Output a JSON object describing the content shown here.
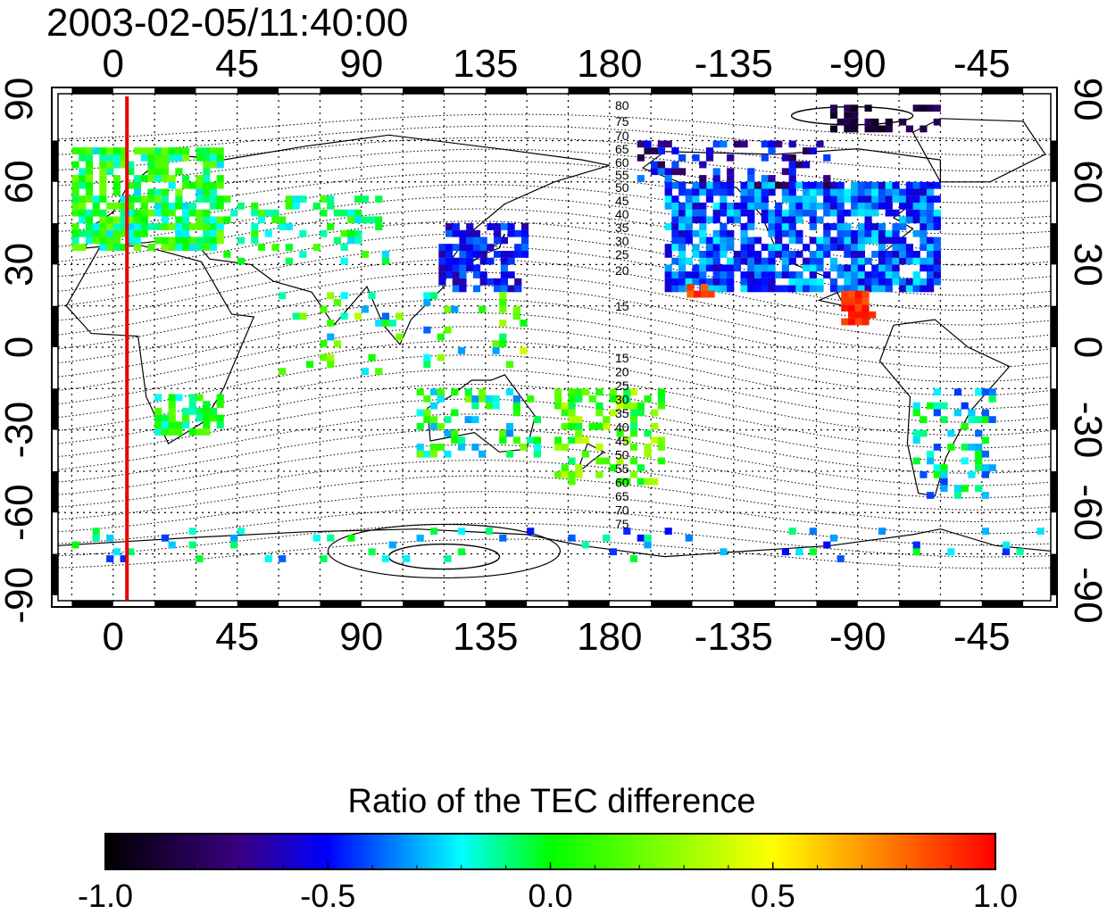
{
  "map": {
    "timestamp": "2003-02-05/11:40:00",
    "lon_ticks": [
      "0",
      "45",
      "90",
      "135",
      "180",
      "-135",
      "-90",
      "-45"
    ],
    "lat_ticks": [
      "90",
      "60",
      "30",
      "0",
      "-30",
      "-60",
      "-90"
    ],
    "lon_values": [
      0,
      45,
      90,
      135,
      180,
      225,
      270,
      315
    ],
    "lat_values": [
      90,
      60,
      30,
      0,
      -30,
      -60,
      -90
    ],
    "lon_range": [
      -20,
      340
    ],
    "lat_range": [
      -92,
      92
    ],
    "grid": true,
    "terminator_longitude": 5,
    "terminator_color": "#e60000",
    "contour_labels_north": [
      "80",
      "75",
      "70",
      "65",
      "60",
      "55",
      "50",
      "45",
      "40",
      "35",
      "30",
      "25",
      "20",
      "15"
    ],
    "contour_labels_south": [
      "15",
      "20",
      "25",
      "30",
      "35",
      "40",
      "45",
      "50",
      "55",
      "60",
      "65",
      "70",
      "75"
    ]
  },
  "colorbar": {
    "title": "Ratio of the TEC difference",
    "tick_labels": [
      "-1.0",
      "-0.5",
      "0.0",
      "0.5",
      "1.0"
    ],
    "tick_values": [
      -1.0,
      -0.5,
      0.0,
      0.5,
      1.0
    ],
    "range": [
      -1.0,
      1.0
    ],
    "colors": [
      "#000000",
      "#3a0080",
      "#0000ff",
      "#00ffff",
      "#00ff00",
      "#ffff00",
      "#ff0000"
    ]
  }
}
